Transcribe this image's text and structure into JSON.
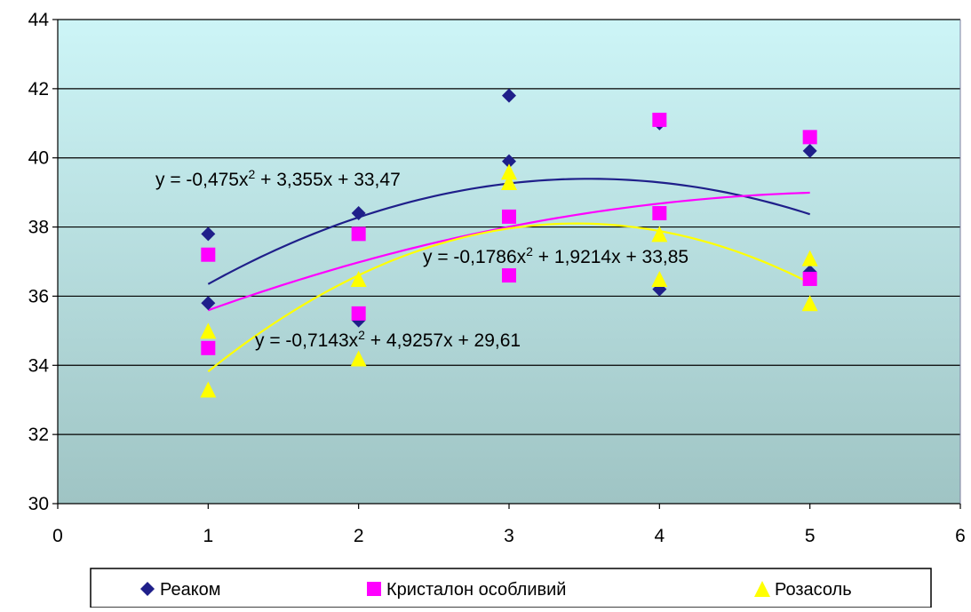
{
  "chart_data": {
    "type": "scatter",
    "title": "",
    "xlabel": "",
    "ylabel": "",
    "xlim": [
      0,
      6
    ],
    "ylim": [
      30,
      44
    ],
    "x_ticks": [
      "0",
      "1",
      "2",
      "3",
      "4",
      "5",
      "6"
    ],
    "y_ticks": [
      "30",
      "32",
      "34",
      "36",
      "38",
      "40",
      "42",
      "44"
    ],
    "grid": "horizontal",
    "legend_position": "bottom",
    "plot_background": [
      "#cdf5f7",
      "#9fc4c4"
    ],
    "series": [
      {
        "name": "Реаком",
        "color": "#1f1f8a",
        "marker": "diamond",
        "points": [
          [
            1,
            37.8
          ],
          [
            1,
            35.8
          ],
          [
            2,
            38.4
          ],
          [
            2,
            35.3
          ],
          [
            3,
            41.8
          ],
          [
            3,
            39.9
          ],
          [
            4,
            41.0
          ],
          [
            4,
            36.2
          ],
          [
            5,
            40.2
          ],
          [
            5,
            36.7
          ]
        ],
        "trendline": {
          "type": "polynomial",
          "coefficients": [
            -0.475,
            3.355,
            33.47
          ],
          "equation": [
            "y = -0,475x",
            "2",
            " + 3,355x + 33,47"
          ]
        }
      },
      {
        "name": "Кристалон особливий",
        "color": "#ff00ff",
        "marker": "square",
        "points": [
          [
            1,
            37.2
          ],
          [
            1,
            34.5
          ],
          [
            2,
            37.8
          ],
          [
            2,
            35.5
          ],
          [
            3,
            38.3
          ],
          [
            3,
            36.6
          ],
          [
            4,
            41.1
          ],
          [
            4,
            38.4
          ],
          [
            5,
            40.6
          ],
          [
            5,
            36.5
          ]
        ],
        "trendline": {
          "type": "polynomial",
          "coefficients": [
            -0.1786,
            1.9214,
            33.85
          ],
          "equation": [
            "y = -0,1786x",
            "2",
            " + 1,9214x + 33,85"
          ]
        }
      },
      {
        "name": "Розасоль",
        "color": "#ffff00",
        "marker": "triangle",
        "points": [
          [
            1,
            35.0
          ],
          [
            1,
            33.3
          ],
          [
            2,
            36.5
          ],
          [
            2,
            34.2
          ],
          [
            3,
            39.6
          ],
          [
            3,
            39.3
          ],
          [
            4,
            37.8
          ],
          [
            4,
            36.5
          ],
          [
            5,
            37.1
          ],
          [
            5,
            35.8
          ]
        ],
        "trendline": {
          "type": "polynomial",
          "coefficients": [
            -0.7143,
            4.9257,
            29.61
          ],
          "equation": [
            "y = -0,7143x",
            "2",
            " + 4,9257x + 29,61"
          ]
        }
      }
    ]
  }
}
